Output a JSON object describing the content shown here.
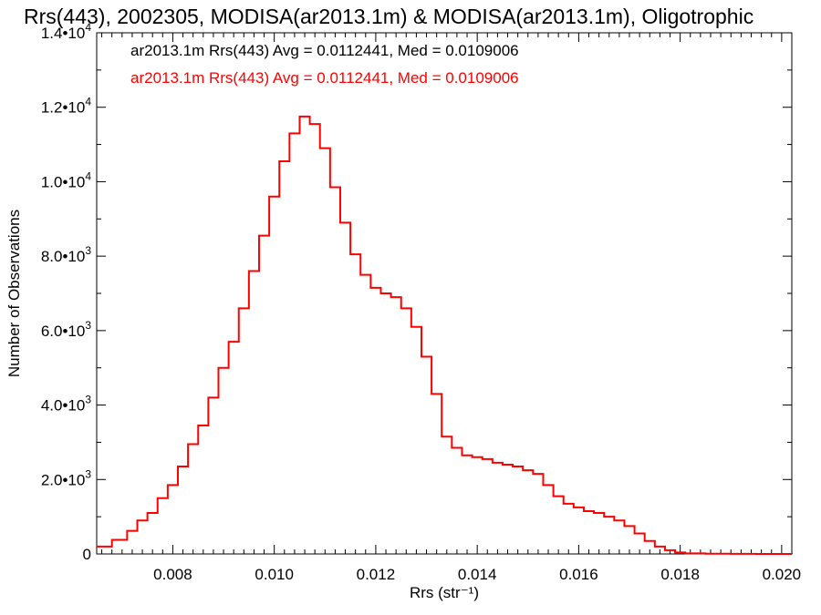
{
  "chart_data": {
    "type": "line",
    "title": "Rrs(443), 2002305, MODISA(ar2013.1m) & MODISA(ar2013.1m), Oligotrophic",
    "xlabel": "Rrs (str⁻¹)",
    "ylabel": "Number of Observations",
    "xlim": [
      0.0065,
      0.0202
    ],
    "ylim": [
      0,
      14000
    ],
    "x_ticks": [
      {
        "value": 0.008,
        "label": "0.008"
      },
      {
        "value": 0.01,
        "label": "0.010"
      },
      {
        "value": 0.012,
        "label": "0.012"
      },
      {
        "value": 0.014,
        "label": "0.014"
      },
      {
        "value": 0.016,
        "label": "0.016"
      },
      {
        "value": 0.018,
        "label": "0.018"
      },
      {
        "value": 0.02,
        "label": "0.020"
      }
    ],
    "y_ticks": [
      {
        "value": 0,
        "label": "0"
      },
      {
        "value": 2000,
        "label": "2.0•103"
      },
      {
        "value": 4000,
        "label": "4.0•103"
      },
      {
        "value": 6000,
        "label": "6.0•103"
      },
      {
        "value": 8000,
        "label": "8.0•103"
      },
      {
        "value": 10000,
        "label": "1.0•104"
      },
      {
        "value": 12000,
        "label": "1.2•104"
      },
      {
        "value": 14000,
        "label": "1.4•104"
      }
    ],
    "grid": false,
    "legend": [
      {
        "text": "ar2013.1m Rrs(443) Avg = 0.0112441, Med = 0.0109006",
        "color": "#000000"
      },
      {
        "text": "ar2013.1m Rrs(443) Avg = 0.0112441, Med = 0.0109006",
        "color": "#ff0000"
      }
    ],
    "series": [
      {
        "color": "#ff0000",
        "step": true,
        "points": [
          [
            0.0065,
            200
          ],
          [
            0.0068,
            380
          ],
          [
            0.0071,
            620
          ],
          [
            0.0073,
            900
          ],
          [
            0.0075,
            1100
          ],
          [
            0.0077,
            1500
          ],
          [
            0.0079,
            1850
          ],
          [
            0.0081,
            2350
          ],
          [
            0.0083,
            2950
          ],
          [
            0.0085,
            3450
          ],
          [
            0.0087,
            4200
          ],
          [
            0.0089,
            5000
          ],
          [
            0.0091,
            5700
          ],
          [
            0.0093,
            6600
          ],
          [
            0.0095,
            7600
          ],
          [
            0.0097,
            8550
          ],
          [
            0.0099,
            9600
          ],
          [
            0.0101,
            10550
          ],
          [
            0.0103,
            11300
          ],
          [
            0.0105,
            11750
          ],
          [
            0.0107,
            11550
          ],
          [
            0.0109,
            10900
          ],
          [
            0.0111,
            9850
          ],
          [
            0.0113,
            8900
          ],
          [
            0.0115,
            8050
          ],
          [
            0.0117,
            7500
          ],
          [
            0.0119,
            7150
          ],
          [
            0.0121,
            7000
          ],
          [
            0.0123,
            6900
          ],
          [
            0.0125,
            6600
          ],
          [
            0.0127,
            6100
          ],
          [
            0.0129,
            5300
          ],
          [
            0.0131,
            4300
          ],
          [
            0.0133,
            3150
          ],
          [
            0.0135,
            2850
          ],
          [
            0.0137,
            2650
          ],
          [
            0.0139,
            2600
          ],
          [
            0.0141,
            2550
          ],
          [
            0.0143,
            2450
          ],
          [
            0.0145,
            2400
          ],
          [
            0.0147,
            2350
          ],
          [
            0.0149,
            2250
          ],
          [
            0.0151,
            2150
          ],
          [
            0.0153,
            1850
          ],
          [
            0.0155,
            1550
          ],
          [
            0.0157,
            1350
          ],
          [
            0.0159,
            1250
          ],
          [
            0.0161,
            1150
          ],
          [
            0.0163,
            1100
          ],
          [
            0.0165,
            1000
          ],
          [
            0.0167,
            900
          ],
          [
            0.0169,
            750
          ],
          [
            0.0171,
            550
          ],
          [
            0.0173,
            350
          ],
          [
            0.0175,
            200
          ],
          [
            0.0177,
            100
          ],
          [
            0.0179,
            40
          ],
          [
            0.0181,
            15
          ],
          [
            0.0185,
            5
          ],
          [
            0.019,
            2
          ],
          [
            0.0195,
            1
          ],
          [
            0.0202,
            0
          ]
        ]
      }
    ]
  }
}
